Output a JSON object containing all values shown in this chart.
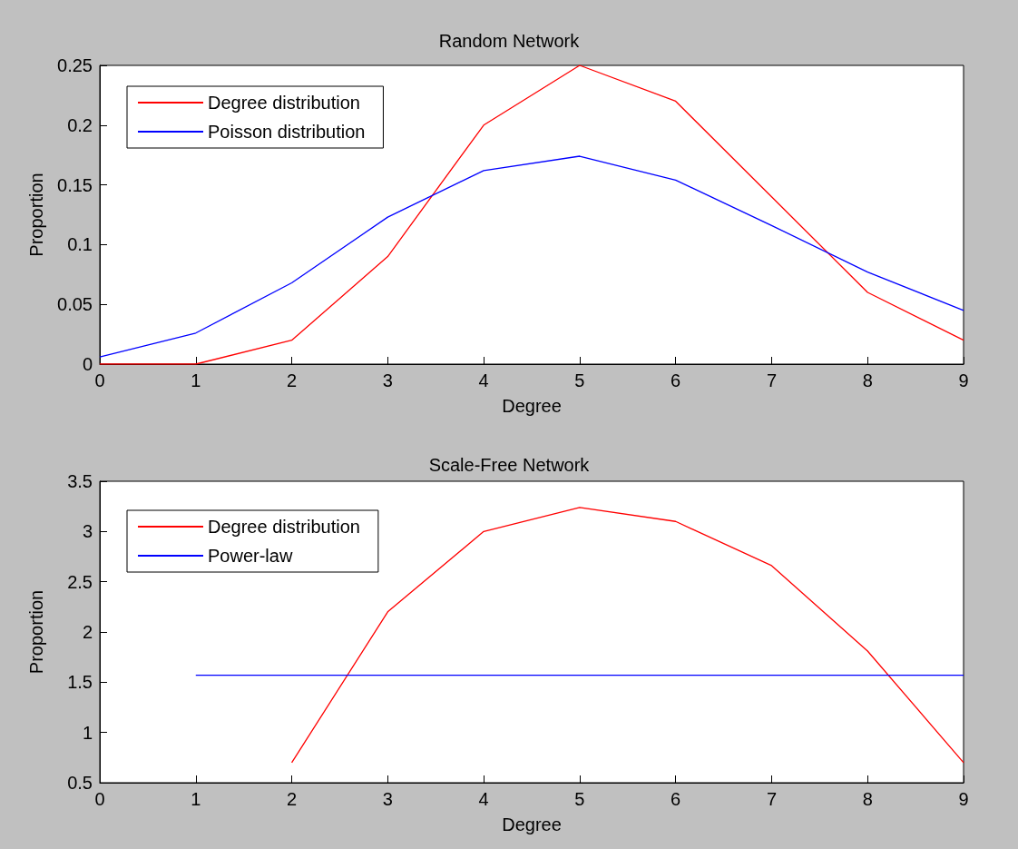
{
  "chart_data": [
    {
      "type": "line",
      "title": "Random Network",
      "xlabel": "Degree",
      "ylabel": "Proportion",
      "series": [
        {
          "name": "Degree distribution",
          "color": "#ff0000",
          "x": [
            0,
            1,
            2,
            3,
            4,
            5,
            6,
            7,
            8,
            9
          ],
          "values": [
            0,
            0,
            0.02,
            0.09,
            0.2,
            0.25,
            0.22,
            0.14,
            0.06,
            0.02
          ]
        },
        {
          "name": "Poisson distribution",
          "color": "#0000ff",
          "x": [
            0,
            1,
            2,
            3,
            4,
            5,
            6,
            7,
            8,
            9
          ],
          "values": [
            0.006,
            0.026,
            0.068,
            0.123,
            0.162,
            0.174,
            0.154,
            0.116,
            0.077,
            0.045
          ]
        }
      ],
      "xlim": [
        0,
        9
      ],
      "xticks": [
        0,
        1,
        2,
        3,
        4,
        5,
        6,
        7,
        8,
        9
      ],
      "ylim": [
        0,
        0.25
      ],
      "yticks": [
        0,
        0.05,
        0.1,
        0.15,
        0.2,
        0.25
      ],
      "legend": "top left",
      "marker": "none",
      "grid": false
    },
    {
      "type": "line",
      "title": "Scale-Free Network",
      "xlabel": "Degree",
      "ylabel": "Proportion",
      "series": [
        {
          "name": "Degree distribution",
          "color": "#ff0000",
          "x": [
            2,
            3,
            4,
            5,
            6,
            7,
            8,
            9
          ],
          "values": [
            0.7,
            2.2,
            3.0,
            3.24,
            3.1,
            2.66,
            1.81,
            0.7
          ]
        },
        {
          "name": "Power-law",
          "color": "#0000ff",
          "x": [
            1,
            2,
            3,
            4,
            5,
            6,
            7,
            8,
            9
          ],
          "values": [
            1.57,
            1.57,
            1.57,
            1.57,
            1.57,
            1.57,
            1.57,
            1.57,
            1.57
          ]
        }
      ],
      "xlim": [
        0,
        9
      ],
      "xticks": [
        0,
        1,
        2,
        3,
        4,
        5,
        6,
        7,
        8,
        9
      ],
      "ylim": [
        0.5,
        3.5
      ],
      "yticks": [
        0.5,
        1,
        1.5,
        2,
        2.5,
        3,
        3.5
      ],
      "legend": "top left",
      "marker": "none",
      "grid": false
    }
  ]
}
